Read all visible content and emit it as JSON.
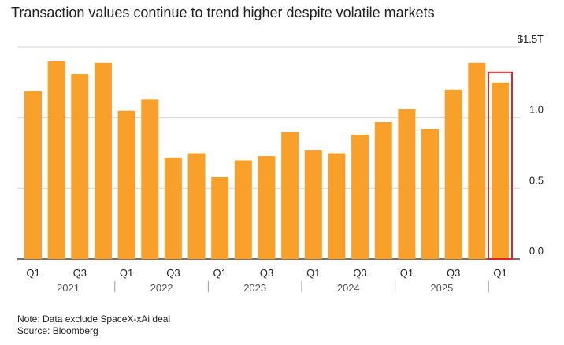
{
  "title": "Transaction values continue to trend higher despite volatile markets",
  "note": "Note: Data exclude SpaceX-xAi deal",
  "source": "Source: Bloomberg",
  "chart_data": {
    "type": "bar",
    "title": "Transaction values continue to trend higher despite volatile markets",
    "xlabel": "",
    "ylabel": "",
    "ylim": [
      0,
      1.5
    ],
    "y_ticks": [
      {
        "value": 1.5,
        "label": "$1.5T"
      },
      {
        "value": 1.0,
        "label": "1.0"
      },
      {
        "value": 0.5,
        "label": "0.5"
      },
      {
        "value": 0.0,
        "label": "0.0"
      }
    ],
    "categories": [
      "Q1 2021",
      "Q2 2021",
      "Q3 2021",
      "Q4 2021",
      "Q1 2022",
      "Q2 2022",
      "Q3 2022",
      "Q4 2022",
      "Q1 2023",
      "Q2 2023",
      "Q3 2023",
      "Q4 2023",
      "Q1 2024",
      "Q2 2024",
      "Q3 2024",
      "Q4 2024",
      "Q1 2025",
      "Q2 2025",
      "Q3 2025",
      "Q4 2025",
      "Q1 2026"
    ],
    "values": [
      1.19,
      1.4,
      1.31,
      1.39,
      1.05,
      1.13,
      0.72,
      0.75,
      0.58,
      0.7,
      0.73,
      0.9,
      0.77,
      0.75,
      0.88,
      0.97,
      1.06,
      0.92,
      1.2,
      1.39,
      1.25
    ],
    "x_tick_labels": [
      {
        "index": 0,
        "label": "Q1"
      },
      {
        "index": 2,
        "label": "Q3"
      },
      {
        "index": 4,
        "label": "Q1"
      },
      {
        "index": 6,
        "label": "Q3"
      },
      {
        "index": 8,
        "label": "Q1"
      },
      {
        "index": 10,
        "label": "Q3"
      },
      {
        "index": 12,
        "label": "Q1"
      },
      {
        "index": 14,
        "label": "Q3"
      },
      {
        "index": 16,
        "label": "Q1"
      },
      {
        "index": 18,
        "label": "Q3"
      },
      {
        "index": 20,
        "label": "Q1"
      }
    ],
    "years": [
      "2021",
      "2022",
      "2023",
      "2024",
      "2025"
    ],
    "highlight_index": 20,
    "bar_color": "#f9a02a",
    "highlight_color": "#e0262a",
    "grid": true
  }
}
